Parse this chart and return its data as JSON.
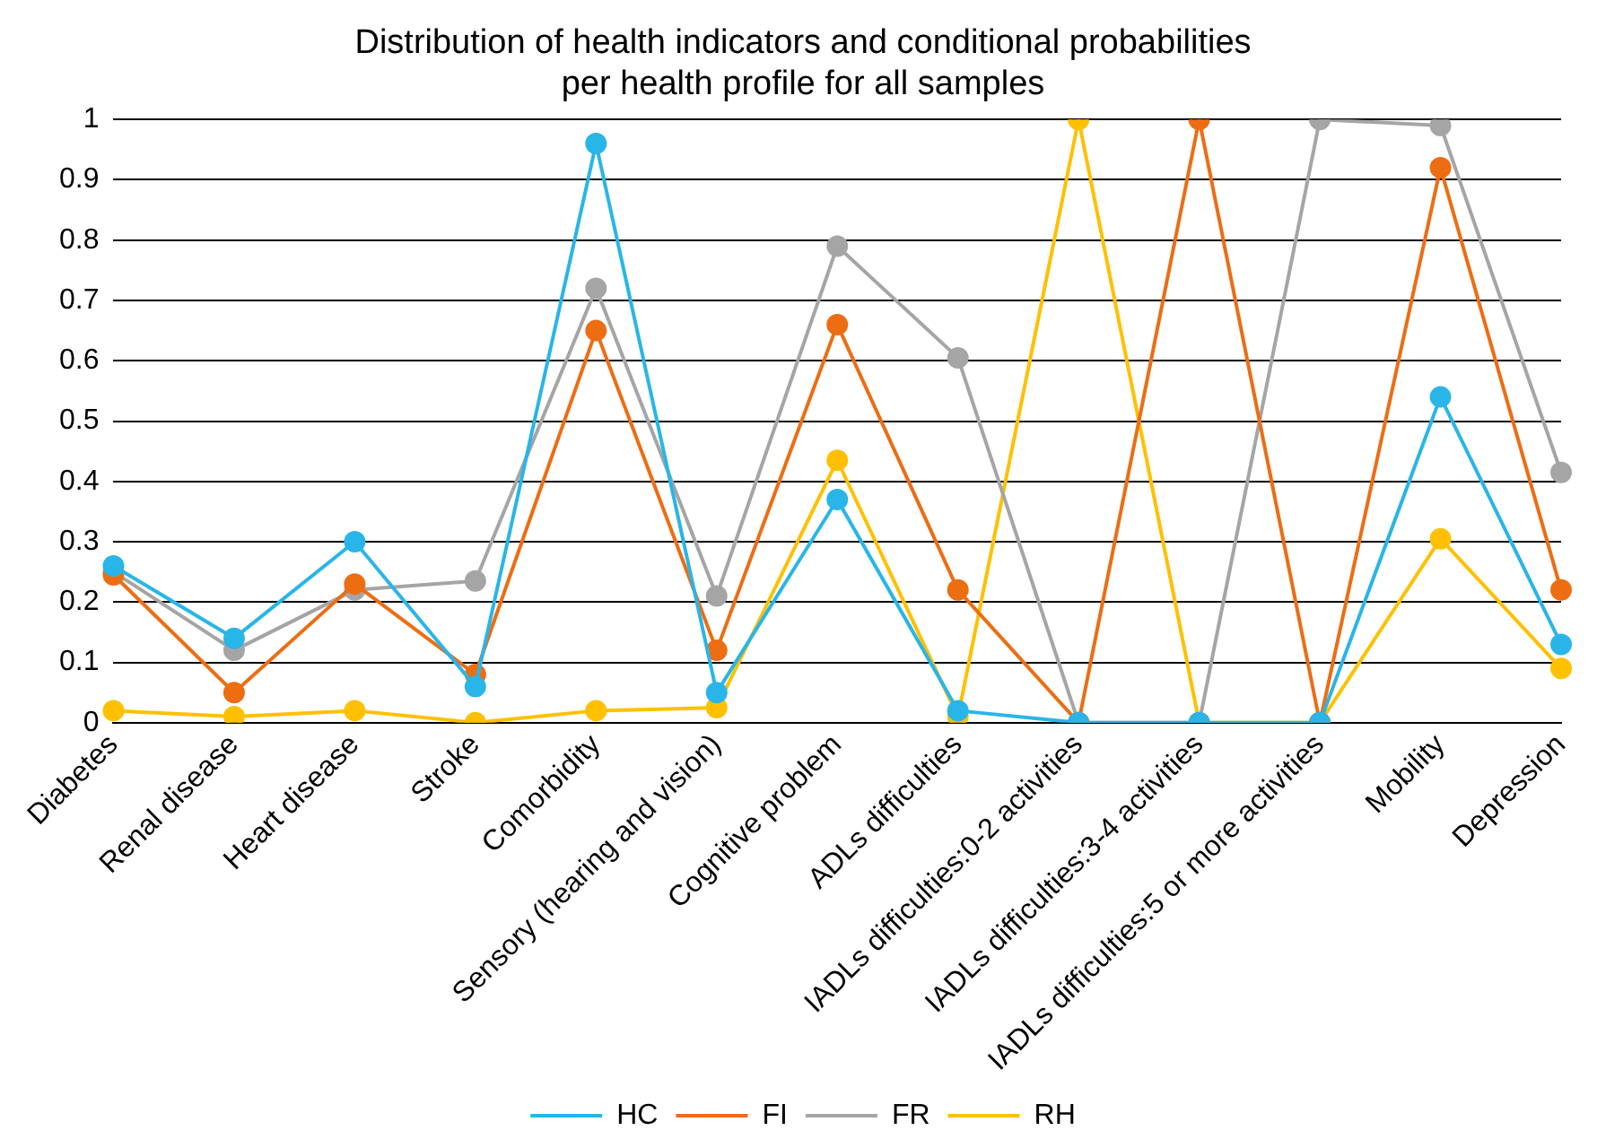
{
  "chart_data": {
    "type": "line",
    "title": "Distribution of health indicators and conditional probabilities\nper health profile for all samples",
    "categories": [
      "Diabetes",
      "Renal disease",
      "Heart disease",
      "Stroke",
      "Comorbidity",
      "Sensory (hearing and vision)",
      "Cognitive problem",
      "ADLs difficulties",
      "IADLs difficulties:0-2 activities",
      "IADLs difficulties:3-4 activities",
      "IADLs difficulties:5 or more activities",
      "Mobility",
      "Depression"
    ],
    "series": [
      {
        "name": "HC",
        "color": "#29b5e8",
        "values": [
          0.26,
          0.14,
          0.3,
          0.06,
          0.96,
          0.05,
          0.37,
          0.02,
          0,
          0,
          0,
          0.54,
          0.13
        ]
      },
      {
        "name": "FI",
        "color": "#ed6d13",
        "values": [
          0.245,
          0.05,
          0.23,
          0.08,
          0.65,
          0.12,
          0.66,
          0.22,
          0,
          1,
          0,
          0.92,
          0.22
        ]
      },
      {
        "name": "FR",
        "color": "#a5a5a5",
        "values": [
          0.25,
          0.12,
          0.22,
          0.235,
          0.72,
          0.21,
          0.79,
          0.605,
          0,
          0,
          1,
          0.99,
          0.415
        ]
      },
      {
        "name": "RH",
        "color": "#ffc000",
        "values": [
          0.02,
          0.01,
          0.02,
          0,
          0.02,
          0.025,
          0.435,
          0.01,
          1,
          0,
          0,
          0.305,
          0.09
        ]
      }
    ],
    "ylim": [
      0,
      1
    ],
    "yticks": [
      0,
      0.1,
      0.2,
      0.3,
      0.4,
      0.5,
      0.6,
      0.7,
      0.8,
      0.9,
      1
    ],
    "grid": "y",
    "legend": "bottom",
    "marker": "circle",
    "line_style": "solid"
  }
}
